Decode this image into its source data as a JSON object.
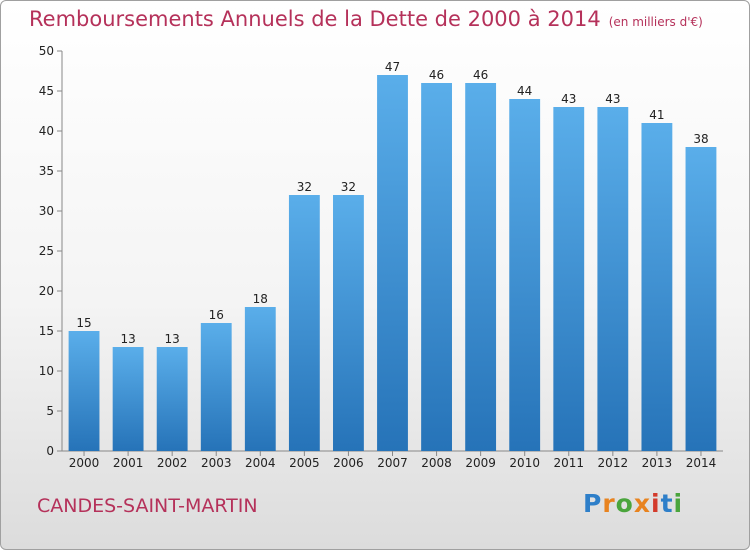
{
  "chart_data": {
    "type": "bar",
    "title": "Remboursements Annuels de la Dette de 2000 à 2014",
    "unit_note": "(en milliers d'€)",
    "categories": [
      "2000",
      "2001",
      "2002",
      "2003",
      "2004",
      "2005",
      "2006",
      "2007",
      "2008",
      "2009",
      "2010",
      "2011",
      "2012",
      "2013",
      "2014"
    ],
    "values": [
      15,
      13,
      13,
      16,
      18,
      32,
      32,
      47,
      46,
      46,
      44,
      43,
      43,
      41,
      38
    ],
    "ylim": [
      0,
      50
    ],
    "yticks": [
      0,
      5,
      10,
      15,
      20,
      25,
      30,
      35,
      40,
      45,
      50
    ],
    "xlabel": "",
    "ylabel": "",
    "grid": false,
    "bar_color": "#3a8fd8"
  },
  "commune": "CANDES-SAINT-MARTIN",
  "logo": {
    "text": "Proxiti",
    "letters": [
      "P",
      "r",
      "o",
      "x",
      "i",
      "t",
      "i"
    ]
  }
}
